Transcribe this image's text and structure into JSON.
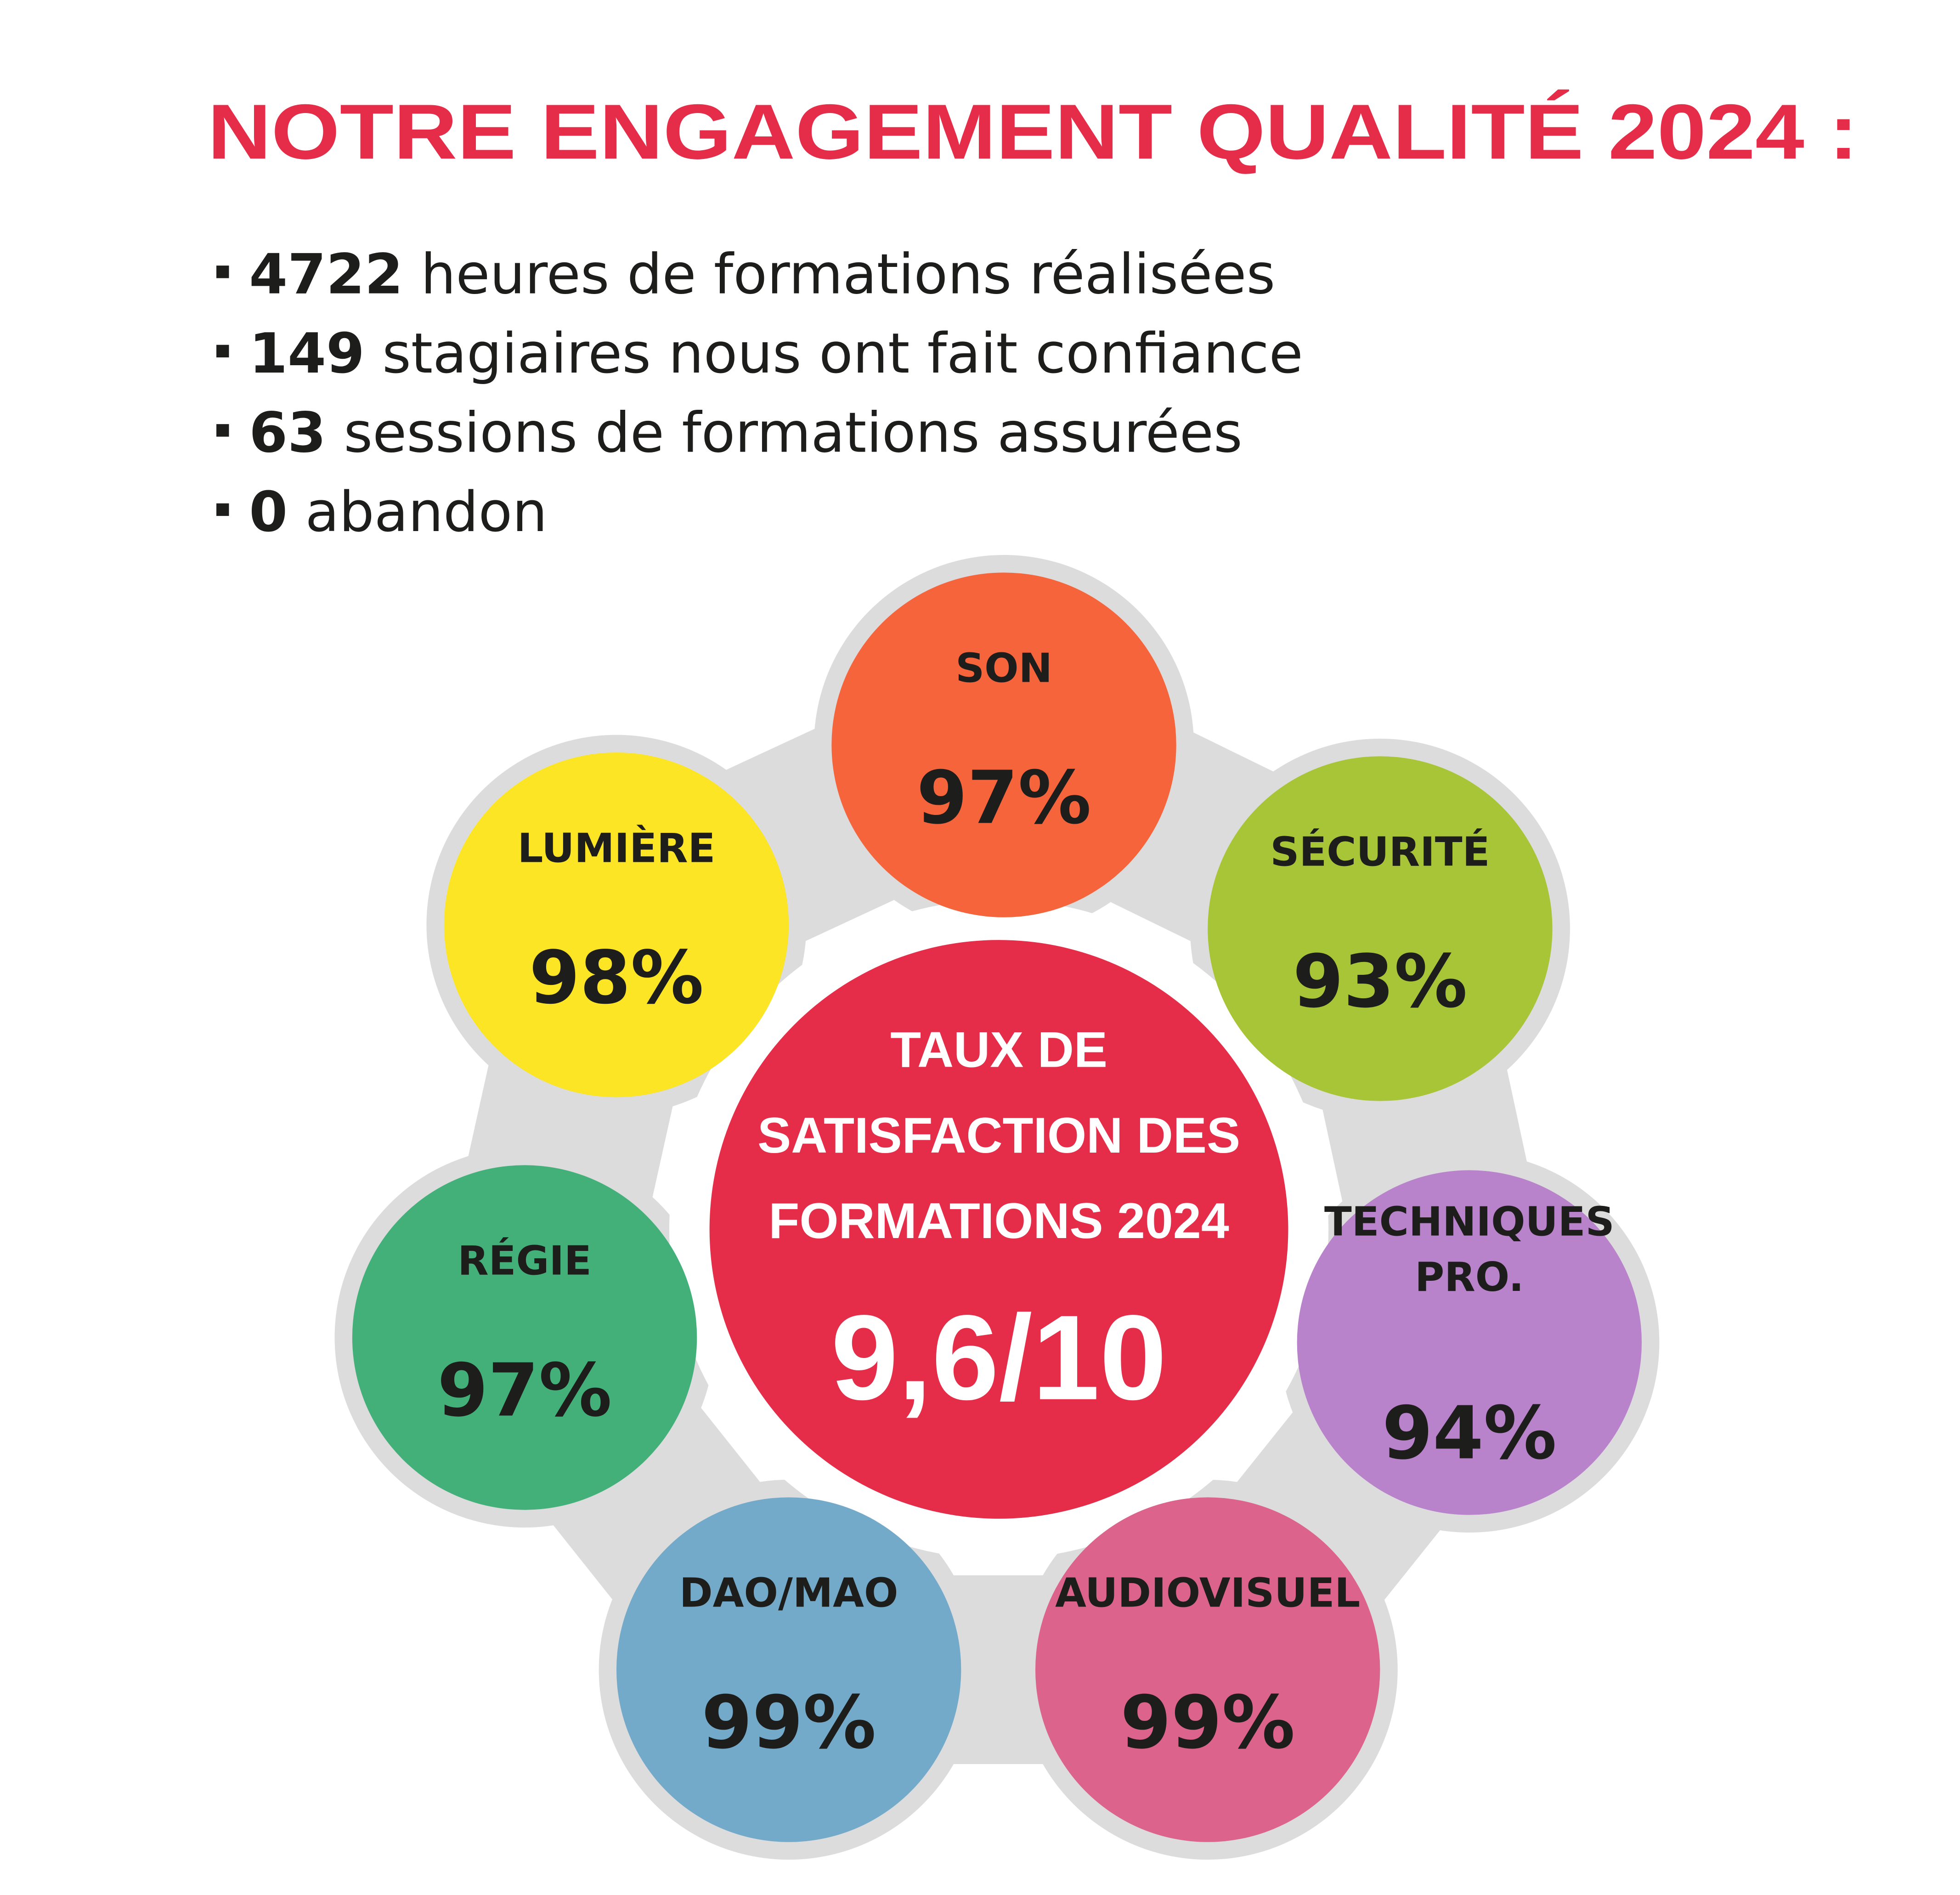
{
  "title": "NOTRE ENGAGEMENT QUALITÉ 2024 :",
  "stats": [
    {
      "number": "4722",
      "text": "heures de formations réalisées"
    },
    {
      "number": "149",
      "text": "stagiaires nous ont fait confiance"
    },
    {
      "number": "63",
      "text": "sessions de formations assurées"
    },
    {
      "number": "0",
      "text": "abandon"
    }
  ],
  "center": {
    "lines": [
      "TAUX DE",
      "SATISFACTION DES",
      "FORMATIONS 2024"
    ],
    "score": "9,6/10",
    "color": "#e52d4a"
  },
  "circles": [
    {
      "label": [
        "SON"
      ],
      "value": "97%",
      "color": "#f6643b"
    },
    {
      "label": [
        "SÉCURITÉ"
      ],
      "value": "93%",
      "color": "#a7c536"
    },
    {
      "label": [
        "TECHNIQUES",
        "PRO."
      ],
      "value": "94%",
      "color": "#b983cc"
    },
    {
      "label": [
        "AUDIOVISUEL"
      ],
      "value": "99%",
      "color": "#db638c"
    },
    {
      "label": [
        "DAO/MAO"
      ],
      "value": "99%",
      "color": "#74aac9"
    },
    {
      "label": [
        "RÉGIE"
      ],
      "value": "97%",
      "color": "#43b07a"
    },
    {
      "label": [
        "LUMIÈRE"
      ],
      "value": "98%",
      "color": "#fce524"
    }
  ]
}
